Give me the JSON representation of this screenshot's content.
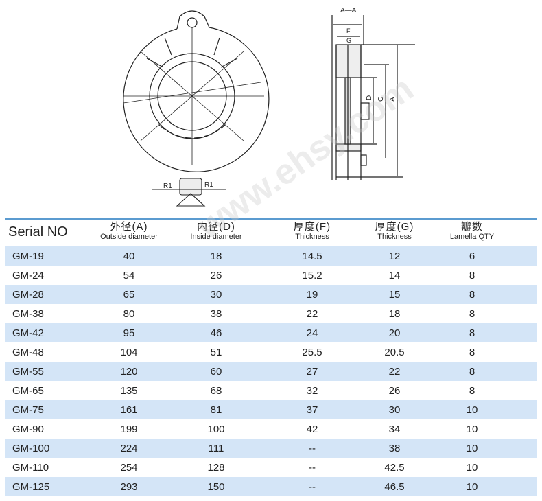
{
  "drawing": {
    "section_label": "A—A",
    "dim_f": "F",
    "dim_g": "G",
    "dim_d": "D",
    "dim_c": "C",
    "dim_a": "A",
    "radius_left": "R1",
    "radius_right": "R1"
  },
  "table": {
    "headers": [
      {
        "cn": "",
        "en": "Serial NO"
      },
      {
        "cn": "外径(A)",
        "en": "Outside diameter"
      },
      {
        "cn": "内径(D)",
        "en": "Inside diameter"
      },
      {
        "cn": "厚度(F)",
        "en": "Thickness"
      },
      {
        "cn": "厚度(G)",
        "en": "Thickness"
      },
      {
        "cn": "瓣数",
        "en": "Lamella QTY"
      }
    ],
    "rows": [
      [
        "GM-19",
        "40",
        "18",
        "14.5",
        "12",
        "6"
      ],
      [
        "GM-24",
        "54",
        "26",
        "15.2",
        "14",
        "8"
      ],
      [
        "GM-28",
        "65",
        "30",
        "19",
        "15",
        "8"
      ],
      [
        "GM-38",
        "80",
        "38",
        "22",
        "18",
        "8"
      ],
      [
        "GM-42",
        "95",
        "46",
        "24",
        "20",
        "8"
      ],
      [
        "GM-48",
        "104",
        "51",
        "25.5",
        "20.5",
        "8"
      ],
      [
        "GM-55",
        "120",
        "60",
        "27",
        "22",
        "8"
      ],
      [
        "GM-65",
        "135",
        "68",
        "32",
        "26",
        "8"
      ],
      [
        "GM-75",
        "161",
        "81",
        "37",
        "30",
        "10"
      ],
      [
        "GM-90",
        "199",
        "100",
        "42",
        "34",
        "10"
      ],
      [
        "GM-100",
        "224",
        "111",
        "--",
        "38",
        "10"
      ],
      [
        "GM-110",
        "254",
        "128",
        "--",
        "42.5",
        "10"
      ],
      [
        "GM-125",
        "293",
        "150",
        "--",
        "46.5",
        "10"
      ]
    ]
  },
  "colors": {
    "accent": "#5b9bd0",
    "stripe": "#d4e5f7"
  }
}
